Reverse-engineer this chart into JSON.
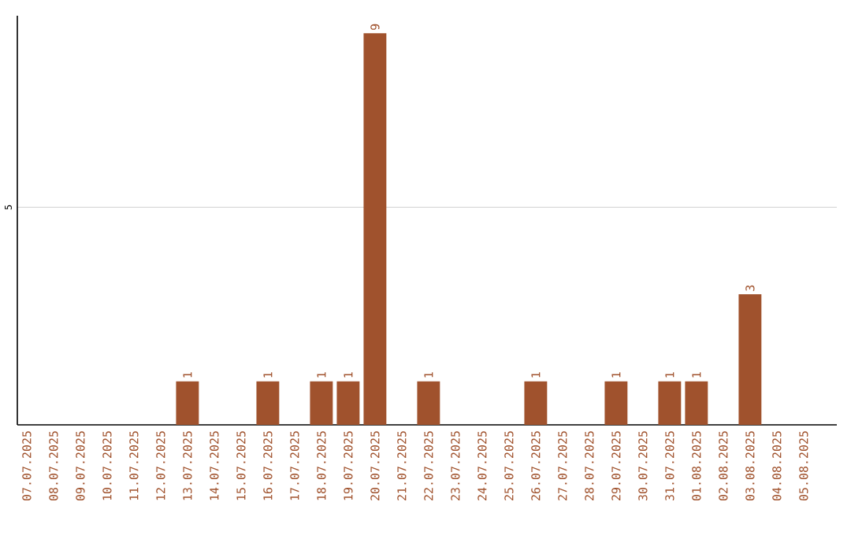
{
  "chart_data": {
    "type": "bar",
    "categories": [
      "07.07.2025",
      "08.07.2025",
      "09.07.2025",
      "10.07.2025",
      "11.07.2025",
      "12.07.2025",
      "13.07.2025",
      "14.07.2025",
      "15.07.2025",
      "16.07.2025",
      "17.07.2025",
      "18.07.2025",
      "19.07.2025",
      "20.07.2025",
      "21.07.2025",
      "22.07.2025",
      "23.07.2025",
      "24.07.2025",
      "25.07.2025",
      "26.07.2025",
      "27.07.2025",
      "28.07.2025",
      "29.07.2025",
      "30.07.2025",
      "31.07.2025",
      "01.08.2025",
      "02.08.2025",
      "03.08.2025",
      "04.08.2025",
      "05.08.2025"
    ],
    "values": [
      0,
      0,
      0,
      0,
      0,
      0,
      1,
      0,
      0,
      1,
      0,
      1,
      1,
      9,
      0,
      1,
      0,
      0,
      0,
      1,
      0,
      0,
      1,
      0,
      1,
      1,
      0,
      3,
      0,
      0
    ],
    "value_labels": [
      null,
      null,
      null,
      null,
      null,
      null,
      "1",
      null,
      null,
      "1",
      null,
      "1",
      "1",
      "9",
      null,
      "1",
      null,
      null,
      null,
      "1",
      null,
      null,
      "1",
      null,
      "1",
      "1",
      null,
      "3",
      null,
      null
    ],
    "color": "#a0522d",
    "ylim": [
      0,
      9.4
    ],
    "yticks": [
      5
    ],
    "grid": "y"
  }
}
